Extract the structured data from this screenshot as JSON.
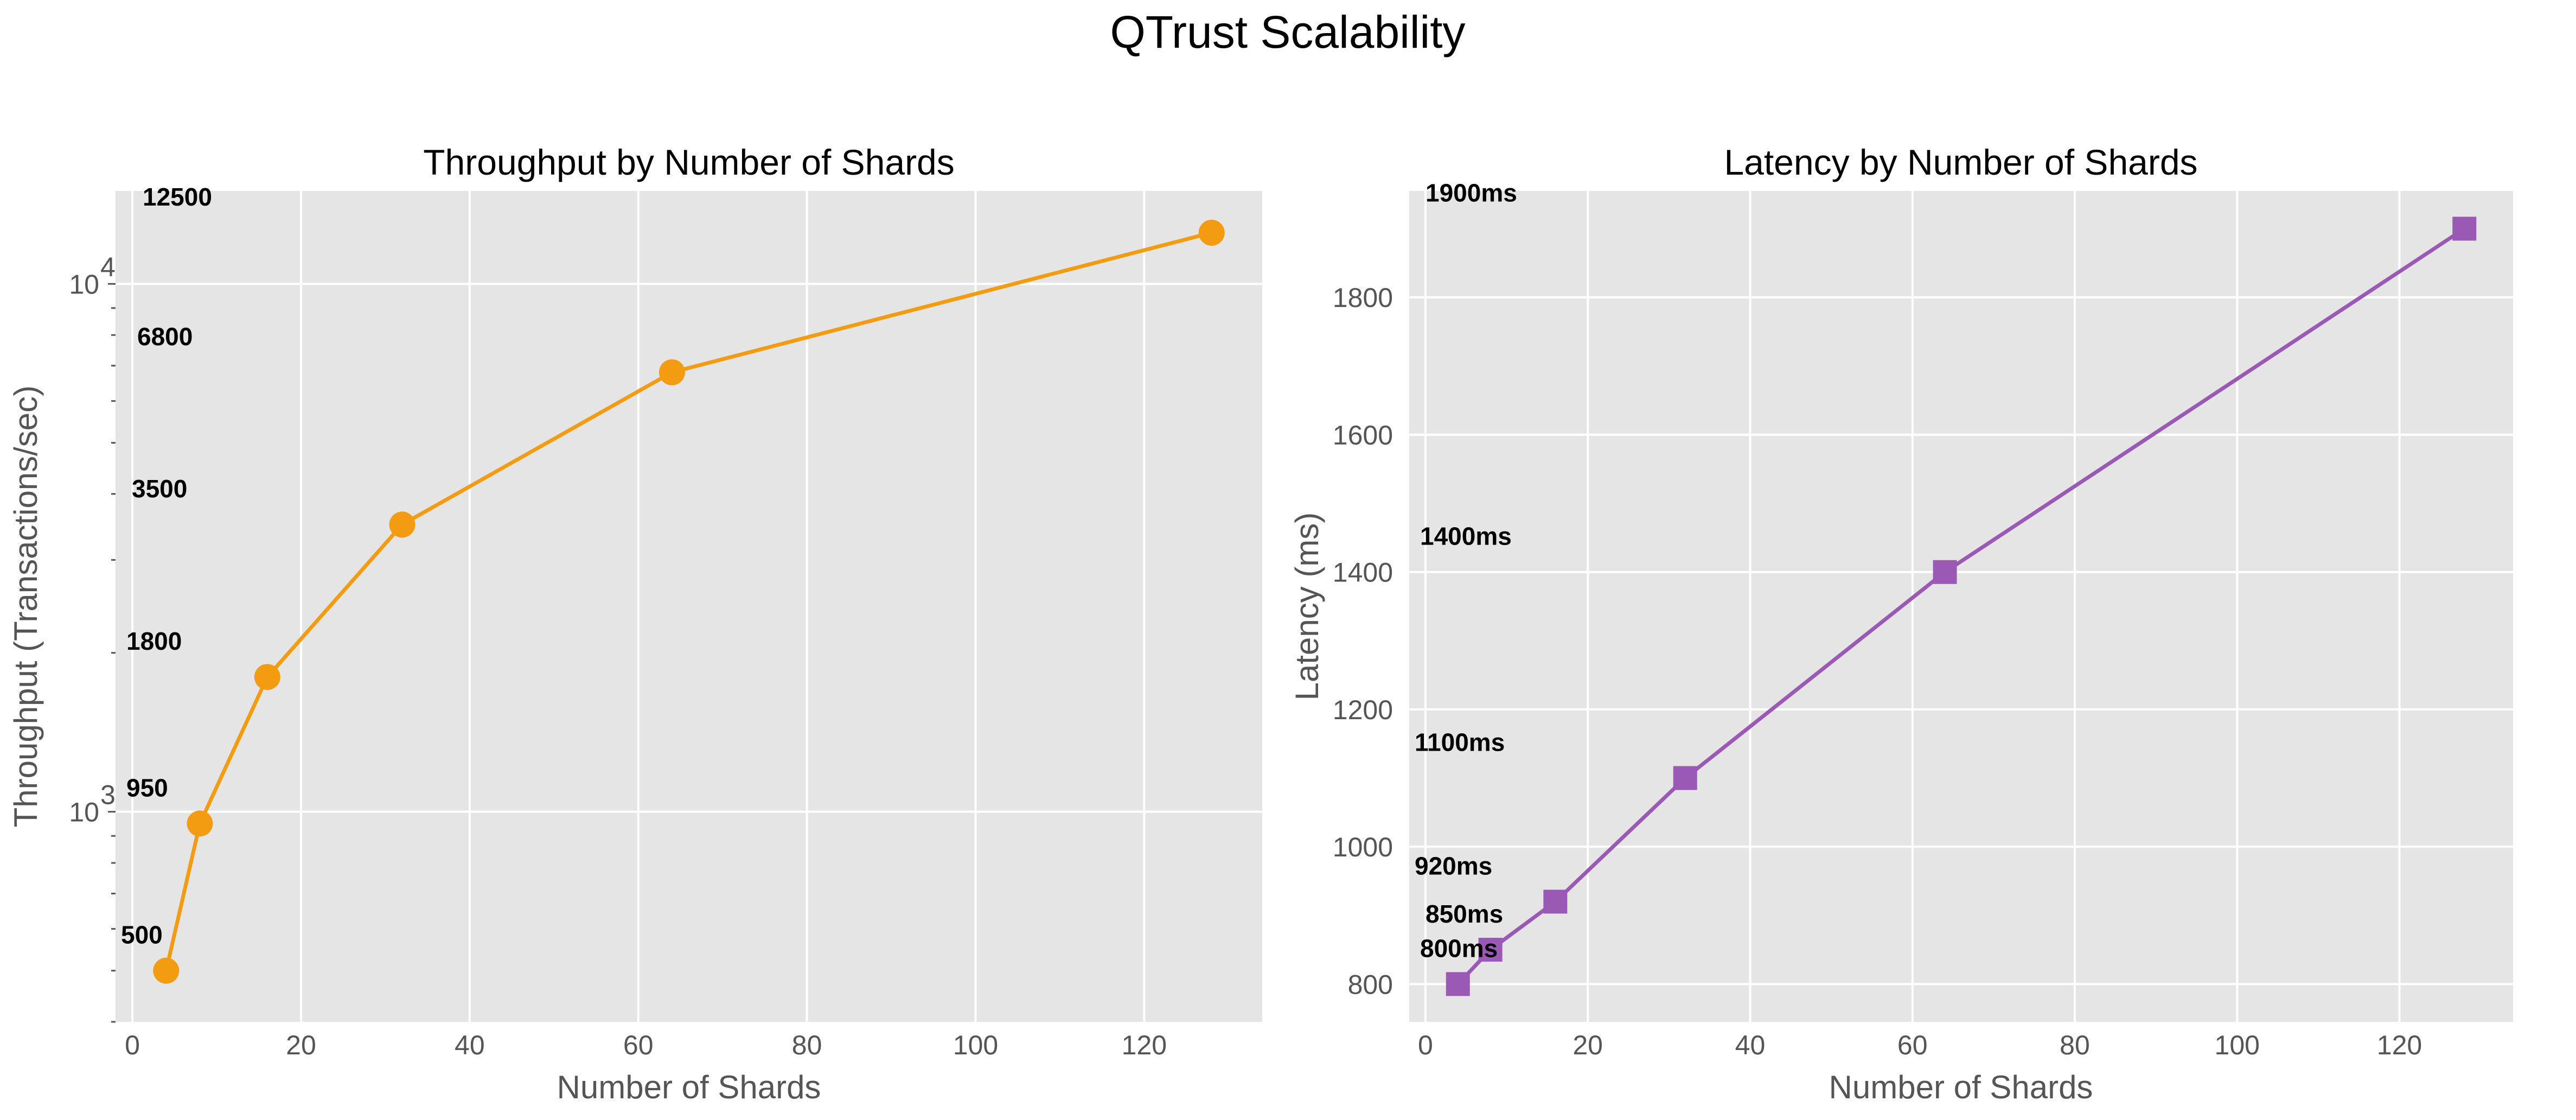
{
  "title": "QTrust Scalability",
  "chart_data": [
    {
      "type": "line",
      "title": "Throughput by Number of Shards",
      "xlabel": "Number of Shards",
      "ylabel": "Throughput (Transactions/sec)",
      "yscale": "log",
      "x": [
        4,
        8,
        16,
        32,
        64,
        128
      ],
      "series": [
        {
          "values": [
            500,
            950,
            1800,
            3500,
            6800,
            12500
          ]
        }
      ],
      "data_labels": [
        "500",
        "950",
        "1800",
        "3500",
        "6800",
        "12500"
      ],
      "xlim": [
        -2,
        134
      ],
      "ylim": [
        400,
        15000
      ],
      "xticks": [
        0,
        20,
        40,
        60,
        80,
        100,
        120
      ],
      "yticks": [
        1000,
        10000
      ],
      "ytick_labels": [
        [
          "10",
          "3"
        ],
        [
          "10",
          "4"
        ]
      ],
      "grid": true,
      "marker": "circle",
      "color": "#f39c12"
    },
    {
      "type": "line",
      "title": "Latency by Number of Shards",
      "xlabel": "Number of Shards",
      "ylabel": "Latency (ms)",
      "x": [
        4,
        8,
        16,
        32,
        64,
        128
      ],
      "series": [
        {
          "values": [
            800,
            850,
            920,
            1100,
            1400,
            1900
          ]
        }
      ],
      "data_labels": [
        "800ms",
        "850ms",
        "920ms",
        "1100ms",
        "1400ms",
        "1900ms"
      ],
      "xlim": [
        -2,
        134
      ],
      "ylim": [
        745,
        1955
      ],
      "xticks": [
        0,
        20,
        40,
        60,
        80,
        100,
        120
      ],
      "yticks": [
        800,
        1000,
        1200,
        1400,
        1600,
        1800
      ],
      "grid": true,
      "marker": "square",
      "color": "#9b59b6"
    }
  ]
}
